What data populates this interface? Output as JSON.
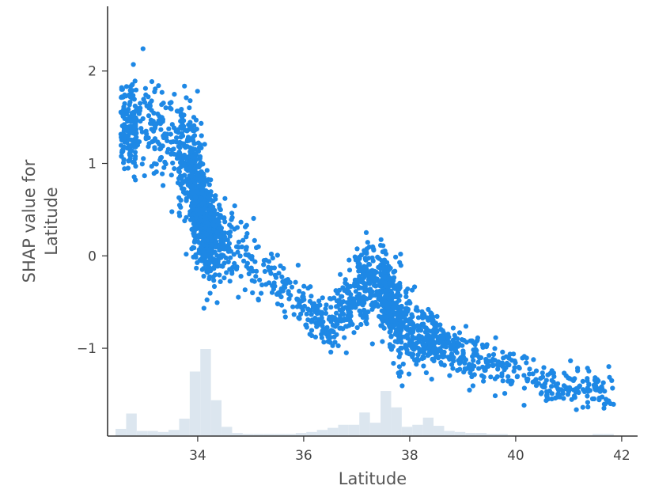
{
  "chart_data": {
    "type": "scatter",
    "xlabel": "Latitude",
    "ylabel_lines": [
      "SHAP value for",
      "Latitude"
    ],
    "xlim": [
      32.3,
      42.3
    ],
    "ylim": [
      -1.95,
      2.7
    ],
    "xticks": [
      34,
      36,
      38,
      40,
      42
    ],
    "yticks": [
      -1,
      0,
      1,
      2
    ],
    "color": "#1e88e5",
    "histogram_color": "#dce6ef",
    "grid": false,
    "point_count": 2600,
    "trend": [
      {
        "x": 32.65,
        "y": 1.45
      },
      {
        "x": 33.0,
        "y": 1.4
      },
      {
        "x": 33.4,
        "y": 1.3
      },
      {
        "x": 33.8,
        "y": 1.0
      },
      {
        "x": 34.0,
        "y": 0.6
      },
      {
        "x": 34.2,
        "y": 0.25
      },
      {
        "x": 34.6,
        "y": 0.1
      },
      {
        "x": 35.0,
        "y": -0.05
      },
      {
        "x": 35.5,
        "y": -0.3
      },
      {
        "x": 36.0,
        "y": -0.55
      },
      {
        "x": 36.5,
        "y": -0.75
      },
      {
        "x": 36.9,
        "y": -0.55
      },
      {
        "x": 37.2,
        "y": -0.2
      },
      {
        "x": 37.5,
        "y": -0.35
      },
      {
        "x": 37.8,
        "y": -0.7
      },
      {
        "x": 38.2,
        "y": -0.9
      },
      {
        "x": 38.6,
        "y": -0.95
      },
      {
        "x": 39.0,
        "y": -1.05
      },
      {
        "x": 39.5,
        "y": -1.15
      },
      {
        "x": 40.0,
        "y": -1.25
      },
      {
        "x": 40.5,
        "y": -1.35
      },
      {
        "x": 41.0,
        "y": -1.45
      },
      {
        "x": 41.5,
        "y": -1.45
      },
      {
        "x": 41.9,
        "y": -1.5
      }
    ],
    "spread": [
      {
        "x": 32.65,
        "s": 0.22
      },
      {
        "x": 33.3,
        "s": 0.25
      },
      {
        "x": 33.9,
        "s": 0.35
      },
      {
        "x": 34.2,
        "s": 0.22
      },
      {
        "x": 35.0,
        "s": 0.15
      },
      {
        "x": 36.0,
        "s": 0.12
      },
      {
        "x": 37.2,
        "s": 0.2
      },
      {
        "x": 37.8,
        "s": 0.25
      },
      {
        "x": 38.5,
        "s": 0.12
      },
      {
        "x": 40.0,
        "s": 0.12
      },
      {
        "x": 41.9,
        "s": 0.1
      }
    ],
    "histogram": {
      "bins_x": [
        32.55,
        32.75,
        32.95,
        33.15,
        33.35,
        33.55,
        33.75,
        33.95,
        34.15,
        34.35,
        34.55,
        34.75,
        34.95,
        35.15,
        35.35,
        35.55,
        35.75,
        35.95,
        36.15,
        36.35,
        36.55,
        36.75,
        36.95,
        37.15,
        37.35,
        37.55,
        37.75,
        37.95,
        38.15,
        38.35,
        38.55,
        38.75,
        38.95,
        39.15,
        39.35,
        39.55,
        39.75,
        39.95,
        40.15,
        40.35,
        40.55,
        40.75,
        40.95,
        41.15,
        41.35,
        41.55,
        41.75
      ],
      "bins_h": [
        0.07,
        0.22,
        0.05,
        0.05,
        0.04,
        0.06,
        0.17,
        0.63,
        0.85,
        0.35,
        0.09,
        0.03,
        0.02,
        0.02,
        0.02,
        0.02,
        0.02,
        0.03,
        0.04,
        0.06,
        0.08,
        0.11,
        0.11,
        0.23,
        0.13,
        0.44,
        0.28,
        0.09,
        0.11,
        0.18,
        0.1,
        0.05,
        0.04,
        0.03,
        0.03,
        0.02,
        0.02,
        0.01,
        0.01,
        0.01,
        0.01,
        0.01,
        0.01,
        0.01,
        0.01,
        0.02,
        0.02
      ],
      "bin_width": 0.2
    }
  }
}
